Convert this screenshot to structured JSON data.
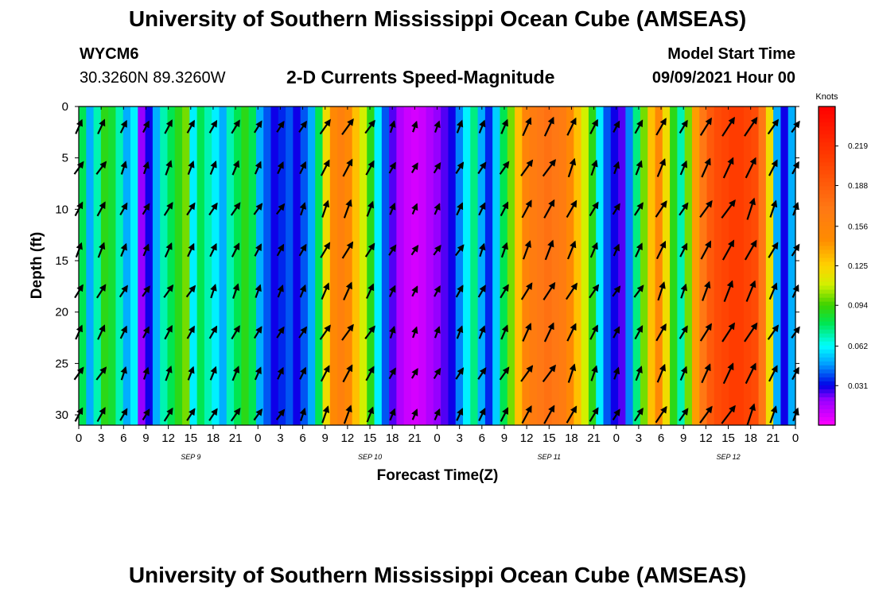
{
  "page": {
    "title_top": "University of Southern Mississippi Ocean Cube (AMSEAS)",
    "title_bottom": "University of Southern Mississippi Ocean Cube (AMSEAS)",
    "station": "WYCM6",
    "coords": "30.3260N  89.3260W",
    "plot_title": "2-D Currents Speed-Magnitude",
    "model_label": "Model Start Time",
    "model_time": "09/09/2021 Hour 00"
  },
  "chart_data": {
    "type": "heatmap",
    "title": "2-D Currents Speed-Magnitude",
    "xlabel": "Forecast Time(Z)",
    "ylabel": "Depth (ft)",
    "colorbar_label": "Knots",
    "colorbar_ticks": [
      0.031,
      0.062,
      0.094,
      0.125,
      0.156,
      0.188,
      0.219
    ],
    "colorbar_range": [
      0,
      0.25
    ],
    "x_ticks": [
      "0",
      "3",
      "6",
      "9",
      "12",
      "15",
      "18",
      "21",
      "0",
      "3",
      "6",
      "9",
      "12",
      "15",
      "18",
      "21",
      "0",
      "3",
      "6",
      "9",
      "12",
      "15",
      "18",
      "21",
      "0",
      "3",
      "6",
      "9",
      "12",
      "15",
      "18",
      "21",
      "0"
    ],
    "x_range_hours": [
      0,
      96
    ],
    "date_labels": [
      {
        "text": "SEP 9",
        "hour": 15
      },
      {
        "text": "SEP 10",
        "hour": 39
      },
      {
        "text": "SEP 11",
        "hour": 63
      },
      {
        "text": "SEP 12",
        "hour": 87
      }
    ],
    "y_ticks": [
      0,
      5,
      10,
      15,
      20,
      25,
      30
    ],
    "y_range_ft": [
      0,
      31
    ],
    "column_speeds_knots": [
      0.08,
      0.05,
      0.07,
      0.09,
      0.085,
      0.07,
      0.05,
      0.06,
      0.02,
      0.03,
      0.05,
      0.07,
      0.08,
      0.09,
      0.1,
      0.06,
      0.08,
      0.07,
      0.06,
      0.05,
      0.07,
      0.08,
      0.09,
      0.08,
      0.05,
      0.04,
      0.03,
      0.035,
      0.04,
      0.03,
      0.04,
      0.05,
      0.08,
      0.12,
      0.15,
      0.16,
      0.15,
      0.13,
      0.11,
      0.09,
      0.06,
      0.04,
      0.025,
      0.015,
      0.01,
      0.008,
      0.01,
      0.015,
      0.02,
      0.025,
      0.03,
      0.045,
      0.06,
      0.075,
      0.05,
      0.035,
      0.055,
      0.08,
      0.1,
      0.13,
      0.155,
      0.165,
      0.17,
      0.175,
      0.17,
      0.165,
      0.15,
      0.13,
      0.11,
      0.09,
      0.06,
      0.04,
      0.03,
      0.025,
      0.045,
      0.075,
      0.1,
      0.13,
      0.15,
      0.12,
      0.09,
      0.07,
      0.1,
      0.14,
      0.17,
      0.19,
      0.2,
      0.205,
      0.21,
      0.21,
      0.205,
      0.2,
      0.17,
      0.12,
      0.05,
      0.03,
      0.05
    ]
  }
}
